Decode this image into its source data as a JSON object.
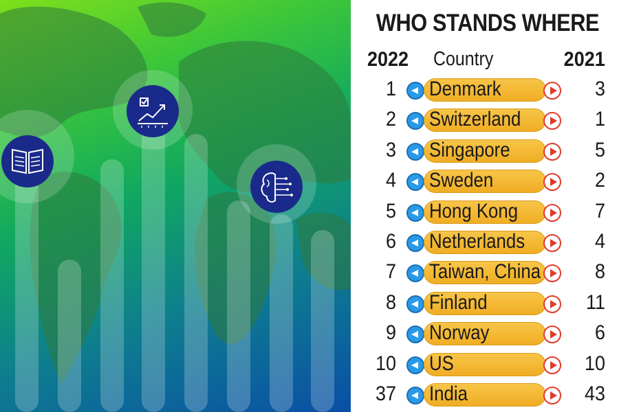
{
  "chart_data": {
    "type": "table",
    "title": "WHO STANDS WHERE",
    "columns": [
      "2022",
      "Country",
      "2021"
    ],
    "rows": [
      {
        "rank_2022": "1",
        "country": "Denmark",
        "rank_2021": "3"
      },
      {
        "rank_2022": "2",
        "country": "Switzerland",
        "rank_2021": "1"
      },
      {
        "rank_2022": "3",
        "country": "Singapore",
        "rank_2021": "5"
      },
      {
        "rank_2022": "4",
        "country": "Sweden",
        "rank_2021": "2"
      },
      {
        "rank_2022": "5",
        "country": "Hong Kong",
        "rank_2021": "7"
      },
      {
        "rank_2022": "6",
        "country": "Netherlands",
        "rank_2021": "4"
      },
      {
        "rank_2022": "7",
        "country": "Taiwan, China",
        "rank_2021": "8"
      },
      {
        "rank_2022": "8",
        "country": "Finland",
        "rank_2021": "11"
      },
      {
        "rank_2022": "9",
        "country": "Norway",
        "rank_2021": "6"
      },
      {
        "rank_2022": "10",
        "country": "US",
        "rank_2021": "10"
      },
      {
        "rank_2022": "37",
        "country": "India",
        "rank_2021": "43"
      }
    ]
  },
  "illustration": {
    "icons": [
      "book-icon",
      "growth-chart-icon",
      "brain-circuit-icon"
    ],
    "colors": {
      "top": "#7fe01a",
      "bottom": "#0a4fa6",
      "icon_bg": "#1a2a8a"
    }
  },
  "colors": {
    "pill": "#f0ad24",
    "left_arrow": "#2a9ae8",
    "right_arrow": "#e03a2a"
  }
}
